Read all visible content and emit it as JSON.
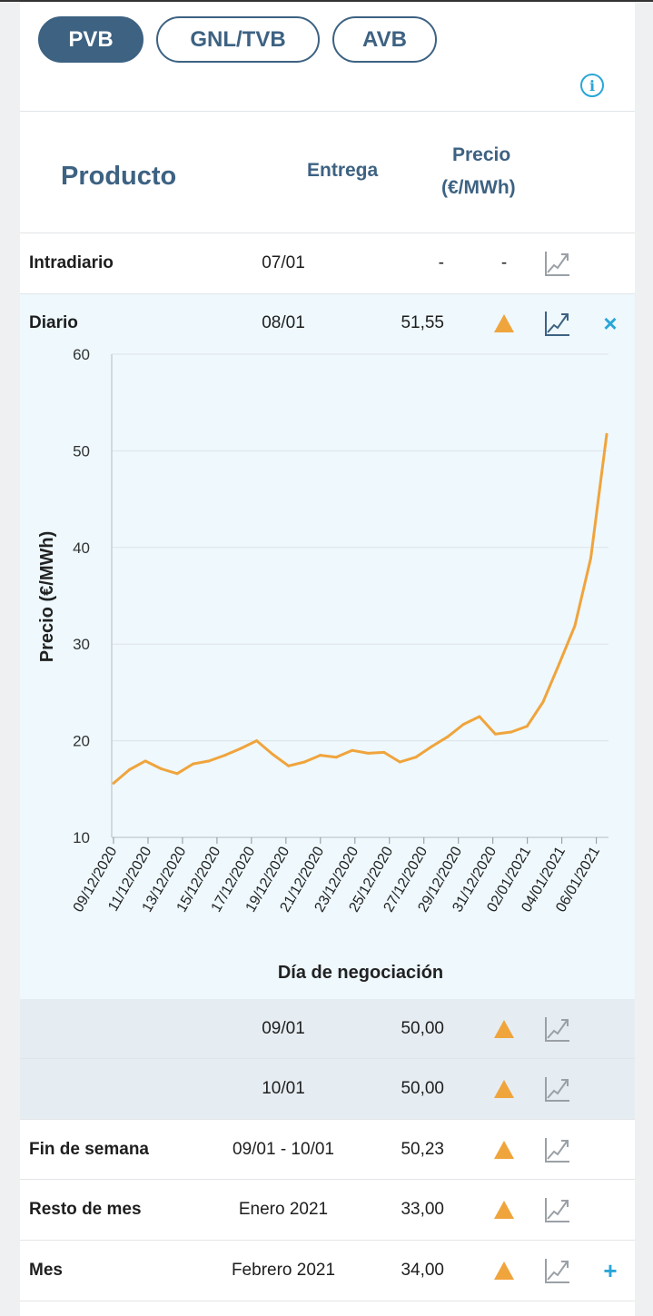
{
  "tabs": [
    {
      "label": "PVB",
      "active": true
    },
    {
      "label": "GNL/TVB",
      "active": false
    },
    {
      "label": "AVB",
      "active": false
    }
  ],
  "info_icon": "info-icon",
  "header": {
    "product": "Producto",
    "delivery": "Entrega",
    "price_line1": "Precio",
    "price_line2": "(€/MWh)"
  },
  "rows": [
    {
      "name": "Intradiario",
      "delivery": "07/01",
      "price": "-",
      "trend": "-",
      "graph_icon": "chart-icon"
    },
    {
      "name": "Diario",
      "delivery": "08/01",
      "price": "51,55",
      "trend": "up",
      "graph_icon": "chart-icon",
      "action": "×"
    },
    {
      "name": "",
      "delivery": "09/01",
      "price": "50,00",
      "trend": "up",
      "graph_icon": "chart-icon"
    },
    {
      "name": "",
      "delivery": "10/01",
      "price": "50,00",
      "trend": "up",
      "graph_icon": "chart-icon"
    },
    {
      "name": "Fin de semana",
      "delivery": "09/01 - 10/01",
      "price": "50,23",
      "trend": "up",
      "graph_icon": "chart-icon"
    },
    {
      "name": "Resto de mes",
      "delivery": "Enero 2021",
      "price": "33,00",
      "trend": "up",
      "graph_icon": "chart-icon"
    },
    {
      "name": "Mes",
      "delivery": "Febrero 2021",
      "price": "34,00",
      "trend": "up",
      "graph_icon": "chart-icon",
      "action": "+"
    }
  ],
  "colors": {
    "accent": "#3d6282",
    "line": "#f0a43c",
    "action": "#2aa6d8"
  },
  "chart_data": {
    "type": "line",
    "xlabel": "Día de negociación",
    "ylabel": "Precio (€/MWh)",
    "ylim": [
      10,
      60
    ],
    "yticks": [
      10,
      20,
      30,
      40,
      50,
      60
    ],
    "xticks": [
      "09/12/2020",
      "11/12/2020",
      "13/12/2020",
      "15/12/2020",
      "17/12/2020",
      "19/12/2020",
      "21/12/2020",
      "23/12/2020",
      "25/12/2020",
      "27/12/2020",
      "29/12/2020",
      "31/12/2020",
      "02/01/2021",
      "04/01/2021",
      "06/01/2021"
    ],
    "grid": true,
    "values": [
      15.6,
      17.0,
      17.9,
      17.1,
      16.6,
      17.6,
      17.9,
      18.5,
      19.2,
      20.0,
      18.6,
      17.4,
      17.8,
      18.5,
      18.3,
      19.0,
      18.7,
      18.8,
      17.8,
      18.3,
      19.4,
      20.4,
      21.7,
      22.5,
      20.7,
      20.9,
      21.5,
      24.0,
      27.9,
      31.9,
      38.9,
      51.7
    ]
  }
}
